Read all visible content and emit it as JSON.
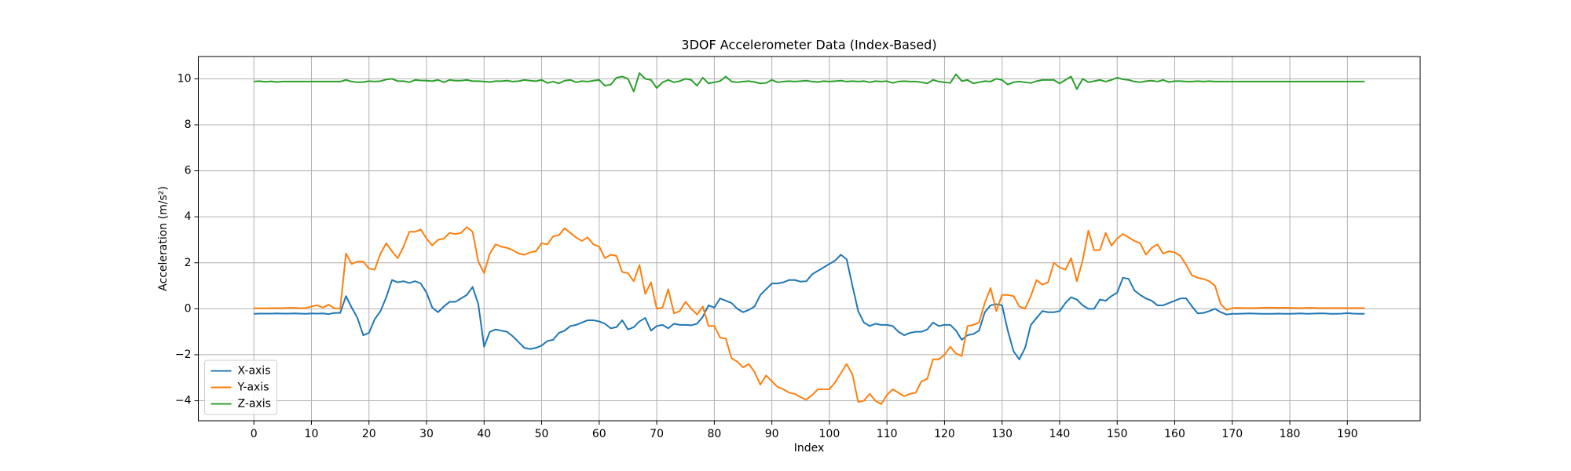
{
  "chart_data": {
    "type": "line",
    "title": "3DOF Accelerometer Data (Index-Based)",
    "xlabel": "Index",
    "ylabel": "Acceleration (m/s²)",
    "grid": true,
    "legend": "lower left",
    "xlim": [
      -9.65,
      202.65
    ],
    "ylim": [
      -4.87,
      10.97
    ],
    "xticks": [
      0,
      10,
      20,
      30,
      40,
      50,
      60,
      70,
      80,
      90,
      100,
      110,
      120,
      130,
      140,
      150,
      160,
      170,
      180,
      190
    ],
    "yticks": [
      {
        "value": -4,
        "label": "−4"
      },
      {
        "value": -2,
        "label": "−2"
      },
      0,
      2,
      4,
      6,
      8,
      10
    ],
    "x": [
      0,
      1,
      2,
      3,
      4,
      5,
      6,
      7,
      8,
      9,
      10,
      11,
      12,
      13,
      14,
      15,
      16,
      17,
      18,
      19,
      20,
      21,
      22,
      23,
      24,
      25,
      26,
      27,
      28,
      29,
      30,
      31,
      32,
      33,
      34,
      35,
      36,
      37,
      38,
      39,
      40,
      41,
      42,
      43,
      44,
      45,
      46,
      47,
      48,
      49,
      50,
      51,
      52,
      53,
      54,
      55,
      56,
      57,
      58,
      59,
      60,
      61,
      62,
      63,
      64,
      65,
      66,
      67,
      68,
      69,
      70,
      71,
      72,
      73,
      74,
      75,
      76,
      77,
      78,
      79,
      80,
      81,
      82,
      83,
      84,
      85,
      86,
      87,
      88,
      89,
      90,
      91,
      92,
      93,
      94,
      95,
      96,
      97,
      98,
      99,
      100,
      101,
      102,
      103,
      104,
      105,
      106,
      107,
      108,
      109,
      110,
      111,
      112,
      113,
      114,
      115,
      116,
      117,
      118,
      119,
      120,
      121,
      122,
      123,
      124,
      125,
      126,
      127,
      128,
      129,
      130,
      131,
      132,
      133,
      134,
      135,
      136,
      137,
      138,
      139,
      140,
      141,
      142,
      143,
      144,
      145,
      146,
      147,
      148,
      149,
      150,
      151,
      152,
      153,
      154,
      155,
      156,
      157,
      158,
      159,
      160,
      161,
      162,
      163,
      164,
      165,
      166,
      167,
      168,
      169,
      170,
      171,
      172,
      173,
      174,
      175,
      176,
      177,
      178,
      179,
      180,
      181,
      182,
      183,
      184,
      185,
      186,
      187,
      188,
      189,
      190,
      191,
      192,
      193
    ],
    "series": [
      {
        "name": "X-axis",
        "color": "#1f77b4",
        "values": [
          -0.22,
          -0.21,
          -0.21,
          -0.21,
          -0.2,
          -0.21,
          -0.21,
          -0.2,
          -0.21,
          -0.22,
          -0.2,
          -0.21,
          -0.2,
          -0.23,
          -0.18,
          -0.18,
          0.55,
          0.05,
          -0.4,
          -1.15,
          -1.05,
          -0.45,
          -0.1,
          0.5,
          1.25,
          1.15,
          1.2,
          1.12,
          1.2,
          1.1,
          0.7,
          0.05,
          -0.15,
          0.1,
          0.3,
          0.3,
          0.45,
          0.6,
          0.95,
          0.2,
          -1.65,
          -1.0,
          -0.9,
          -0.95,
          -1.0,
          -1.2,
          -1.45,
          -1.7,
          -1.75,
          -1.7,
          -1.6,
          -1.4,
          -1.35,
          -1.05,
          -0.95,
          -0.75,
          -0.7,
          -0.6,
          -0.5,
          -0.5,
          -0.55,
          -0.65,
          -0.85,
          -0.8,
          -0.5,
          -0.9,
          -0.8,
          -0.55,
          -0.4,
          -0.95,
          -0.75,
          -0.7,
          -0.85,
          -0.65,
          -0.7,
          -0.7,
          -0.72,
          -0.65,
          -0.35,
          0.15,
          0.05,
          0.45,
          0.35,
          0.25,
          0.0,
          -0.15,
          -0.05,
          0.1,
          0.6,
          0.85,
          1.1,
          1.1,
          1.15,
          1.25,
          1.25,
          1.18,
          1.2,
          1.5,
          1.65,
          1.8,
          1.95,
          2.1,
          2.35,
          2.15,
          1.0,
          -0.1,
          -0.6,
          -0.75,
          -0.65,
          -0.7,
          -0.7,
          -0.75,
          -1.0,
          -1.15,
          -1.05,
          -1.0,
          -1.0,
          -0.9,
          -0.6,
          -0.75,
          -0.7,
          -0.7,
          -0.95,
          -1.35,
          -1.15,
          -1.1,
          -0.95,
          -0.15,
          0.15,
          0.2,
          0.15,
          -0.95,
          -1.85,
          -2.2,
          -1.7,
          -0.7,
          -0.4,
          -0.1,
          -0.15,
          -0.15,
          -0.1,
          0.25,
          0.5,
          0.4,
          0.15,
          0.0,
          0.0,
          0.4,
          0.35,
          0.55,
          0.7,
          1.35,
          1.3,
          0.8,
          0.6,
          0.45,
          0.35,
          0.15,
          0.15,
          0.25,
          0.35,
          0.45,
          0.45,
          0.1,
          -0.2,
          -0.18,
          -0.1,
          0.0,
          -0.15,
          -0.25,
          -0.22,
          -0.22,
          -0.21,
          -0.2,
          -0.21,
          -0.22,
          -0.22,
          -0.22,
          -0.21,
          -0.22,
          -0.22,
          -0.21,
          -0.2,
          -0.22,
          -0.21,
          -0.2,
          -0.2,
          -0.22,
          -0.22,
          -0.21,
          -0.19,
          -0.21,
          -0.22,
          -0.22
        ]
      },
      {
        "name": "Y-axis",
        "color": "#ff7f0e",
        "values": [
          0.03,
          0.02,
          0.02,
          0.03,
          0.02,
          0.03,
          0.04,
          0.04,
          0.02,
          0.03,
          0.1,
          0.15,
          0.05,
          0.18,
          0.02,
          0.0,
          2.4,
          1.95,
          2.05,
          2.05,
          1.75,
          1.7,
          2.4,
          2.85,
          2.5,
          2.2,
          2.7,
          3.35,
          3.35,
          3.45,
          3.05,
          2.75,
          3.0,
          3.05,
          3.3,
          3.25,
          3.3,
          3.55,
          3.35,
          2.05,
          1.55,
          2.4,
          2.8,
          2.7,
          2.65,
          2.55,
          2.4,
          2.35,
          2.45,
          2.5,
          2.85,
          2.8,
          3.15,
          3.2,
          3.5,
          3.3,
          3.1,
          2.95,
          3.1,
          2.8,
          2.7,
          2.2,
          2.35,
          2.3,
          1.6,
          1.55,
          1.2,
          1.9,
          0.65,
          1.15,
          0.0,
          0.05,
          0.85,
          -0.2,
          -0.1,
          0.3,
          0.0,
          -0.25,
          0.1,
          -0.75,
          -0.75,
          -1.25,
          -1.3,
          -2.15,
          -2.3,
          -2.55,
          -2.4,
          -2.75,
          -3.3,
          -2.9,
          -3.15,
          -3.4,
          -3.5,
          -3.65,
          -3.7,
          -3.85,
          -3.95,
          -3.75,
          -3.5,
          -3.5,
          -3.5,
          -3.2,
          -2.8,
          -2.4,
          -2.85,
          -4.05,
          -4.0,
          -3.7,
          -4.0,
          -4.15,
          -3.75,
          -3.5,
          -3.65,
          -3.8,
          -3.7,
          -3.65,
          -3.15,
          -3.05,
          -2.2,
          -2.2,
          -2.0,
          -1.65,
          -1.95,
          -2.05,
          -0.75,
          -0.7,
          -0.6,
          0.25,
          0.9,
          -0.1,
          0.6,
          0.6,
          0.55,
          0.1,
          0.0,
          0.55,
          1.25,
          1.05,
          1.15,
          2.0,
          1.8,
          1.7,
          2.2,
          1.2,
          2.1,
          3.4,
          2.55,
          2.55,
          3.3,
          2.75,
          3.05,
          3.25,
          3.1,
          2.95,
          2.85,
          2.35,
          2.65,
          2.8,
          2.4,
          2.5,
          2.45,
          2.3,
          1.9,
          1.45,
          1.35,
          1.3,
          1.2,
          1.0,
          0.2,
          -0.05,
          0.03,
          0.04,
          0.03,
          0.03,
          0.03,
          0.04,
          0.05,
          0.05,
          0.04,
          0.05,
          0.04,
          0.03,
          0.03,
          0.04,
          0.04,
          0.03,
          0.03,
          0.03,
          0.03,
          0.03,
          0.03,
          0.03,
          0.03,
          0.03
        ]
      },
      {
        "name": "Z-axis",
        "color": "#2ca02c",
        "values": [
          9.88,
          9.9,
          9.87,
          9.89,
          9.86,
          9.88,
          9.88,
          9.88,
          9.88,
          9.88,
          9.88,
          9.88,
          9.88,
          9.88,
          9.88,
          9.88,
          9.95,
          9.88,
          9.85,
          9.86,
          9.9,
          9.88,
          9.9,
          9.97,
          10.0,
          9.9,
          9.9,
          9.85,
          9.95,
          9.93,
          9.92,
          9.9,
          9.95,
          9.85,
          9.95,
          9.92,
          9.92,
          9.95,
          9.9,
          9.9,
          9.88,
          9.86,
          9.9,
          9.9,
          9.92,
          9.88,
          9.9,
          9.95,
          9.92,
          9.9,
          9.95,
          9.82,
          9.88,
          9.8,
          9.92,
          9.95,
          9.85,
          9.9,
          9.88,
          9.92,
          9.95,
          9.7,
          9.75,
          10.05,
          10.1,
          10.0,
          9.45,
          10.25,
          10.0,
          9.95,
          9.6,
          9.85,
          9.95,
          9.85,
          9.9,
          10.0,
          9.95,
          9.7,
          10.05,
          9.8,
          9.85,
          9.9,
          10.1,
          9.88,
          9.85,
          9.88,
          9.9,
          9.86,
          9.8,
          9.82,
          9.95,
          9.85,
          9.88,
          9.9,
          9.88,
          9.9,
          9.92,
          9.88,
          9.86,
          9.9,
          9.88,
          9.9,
          9.92,
          9.88,
          9.9,
          9.88,
          9.9,
          9.85,
          9.9,
          9.88,
          9.9,
          9.82,
          9.88,
          9.9,
          9.88,
          9.88,
          9.85,
          9.8,
          9.95,
          9.88,
          9.85,
          9.82,
          10.2,
          9.9,
          9.95,
          9.8,
          9.85,
          9.9,
          9.88,
          10.0,
          9.95,
          9.75,
          9.85,
          9.88,
          9.85,
          9.82,
          9.9,
          9.95,
          9.95,
          9.95,
          9.8,
          9.95,
          10.1,
          9.55,
          10.0,
          9.85,
          9.9,
          9.95,
          9.88,
          9.95,
          10.05,
          9.98,
          9.95,
          9.88,
          9.85,
          9.9,
          9.92,
          9.88,
          9.95,
          9.86,
          9.9,
          9.9,
          9.88,
          9.88,
          9.9,
          9.88,
          9.9,
          9.88,
          9.88,
          9.88,
          9.88,
          9.88,
          9.88,
          9.88,
          9.88,
          9.88,
          9.88,
          9.88,
          9.88,
          9.88,
          9.88,
          9.88,
          9.88,
          9.88,
          9.88,
          9.88,
          9.88,
          9.88,
          9.88,
          9.88,
          9.88,
          9.88,
          9.88,
          9.88
        ]
      }
    ]
  }
}
